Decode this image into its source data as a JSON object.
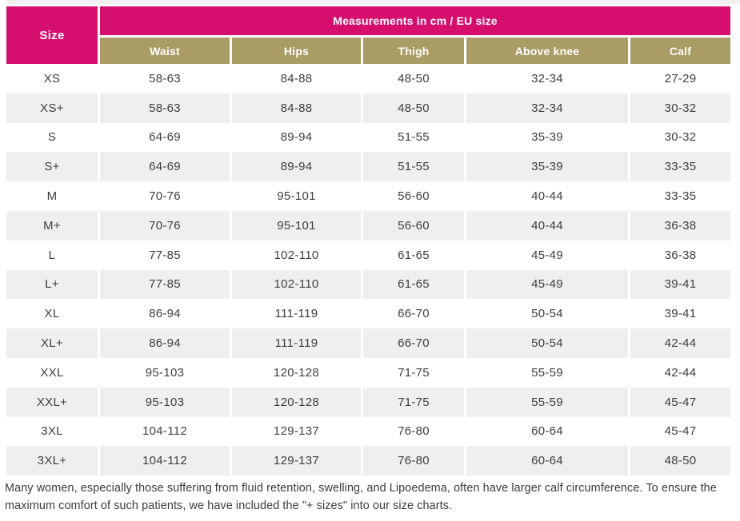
{
  "table": {
    "corner_header": "Size",
    "group_header": "Measurements in cm / EU size",
    "columns": [
      "Waist",
      "Hips",
      "Thigh",
      "Above knee",
      "Calf"
    ],
    "rows": [
      {
        "size": "XS",
        "values": [
          "58-63",
          "84-88",
          "48-50",
          "32-34",
          "27-29"
        ]
      },
      {
        "size": "XS+",
        "values": [
          "58-63",
          "84-88",
          "48-50",
          "32-34",
          "30-32"
        ]
      },
      {
        "size": "S",
        "values": [
          "64-69",
          "89-94",
          "51-55",
          "35-39",
          "30-32"
        ]
      },
      {
        "size": "S+",
        "values": [
          "64-69",
          "89-94",
          "51-55",
          "35-39",
          "33-35"
        ]
      },
      {
        "size": "M",
        "values": [
          "70-76",
          "95-101",
          "56-60",
          "40-44",
          "33-35"
        ]
      },
      {
        "size": "M+",
        "values": [
          "70-76",
          "95-101",
          "56-60",
          "40-44",
          "36-38"
        ]
      },
      {
        "size": "L",
        "values": [
          "77-85",
          "102-110",
          "61-65",
          "45-49",
          "36-38"
        ]
      },
      {
        "size": "L+",
        "values": [
          "77-85",
          "102-110",
          "61-65",
          "45-49",
          "39-41"
        ]
      },
      {
        "size": "XL",
        "values": [
          "86-94",
          "111-119",
          "66-70",
          "50-54",
          "39-41"
        ]
      },
      {
        "size": "XL+",
        "values": [
          "86-94",
          "111-119",
          "66-70",
          "50-54",
          "42-44"
        ]
      },
      {
        "size": "XXL",
        "values": [
          "95-103",
          "120-128",
          "71-75",
          "55-59",
          "42-44"
        ]
      },
      {
        "size": "XXL+",
        "values": [
          "95-103",
          "120-128",
          "71-75",
          "55-59",
          "45-47"
        ]
      },
      {
        "size": "3XL",
        "values": [
          "104-112",
          "129-137",
          "76-80",
          "60-64",
          "45-47"
        ]
      },
      {
        "size": "3XL+",
        "values": [
          "104-112",
          "129-137",
          "76-80",
          "60-64",
          "48-50"
        ]
      }
    ]
  },
  "footnote": "Many women, especially those suffering from fluid retention, swelling, and Lipoedema, often have larger calf circumference. To ensure the maximum comfort of such patients, we have included the \"+ sizes\" into our size charts.",
  "colors": {
    "accent_pink": "#d60f6f",
    "accent_gold": "#a99c64",
    "row_alt": "#efefef"
  }
}
